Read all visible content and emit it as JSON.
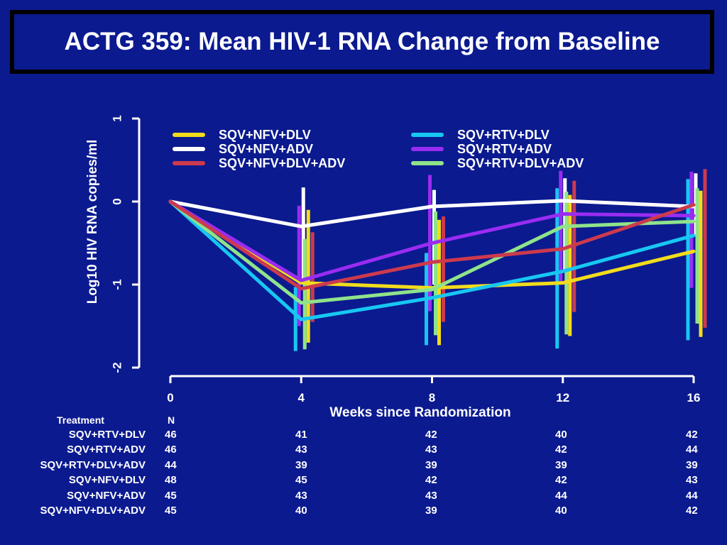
{
  "title": "ACTG 359: Mean HIV-1 RNA Change from Baseline",
  "colors": {
    "background": "#0b1a8f",
    "SQV+NFV+DLV": "#f2dc1c",
    "SQV+NFV+ADV": "#ffffff",
    "SQV+NFV+DLV+ADV": "#cc3a4e",
    "SQV+RTV+DLV": "#17c7f2",
    "SQV+RTV+ADV": "#9a2cf2",
    "SQV+RTV+DLV+ADV": "#8fe38a"
  },
  "chart_data": {
    "type": "line",
    "title": "ACTG 359: Mean HIV-1 RNA Change from Baseline",
    "xlabel": "Weeks since Randomization",
    "ylabel": "Log10 HIV RNA copies/ml",
    "x": [
      0,
      4,
      8,
      12,
      16
    ],
    "xlim": [
      0,
      16
    ],
    "ylim": [
      -2,
      1
    ],
    "x_ticks": [
      "0",
      "4",
      "8",
      "12",
      "16"
    ],
    "y_ticks": [
      "1",
      "0",
      "-1",
      "-2"
    ],
    "legend_position": "top",
    "series": [
      {
        "name": "SQV+NFV+DLV",
        "color": "#f2dc1c",
        "values": [
          0,
          -0.98,
          -1.04,
          -0.98,
          -0.6
        ],
        "err_low": [
          0,
          -1.7,
          -1.73,
          -1.62,
          -1.63
        ],
        "err_high": [
          0,
          -0.1,
          -0.22,
          0.08,
          0.13
        ]
      },
      {
        "name": "SQV+NFV+ADV",
        "color": "#ffffff",
        "values": [
          0,
          -0.3,
          -0.06,
          0.01,
          -0.06
        ],
        "err_low": [
          0,
          -1.0,
          -1.0,
          -0.85,
          -0.42
        ],
        "err_high": [
          0,
          0.17,
          0.14,
          0.28,
          0.34
        ]
      },
      {
        "name": "SQV+NFV+DLV+ADV",
        "color": "#cc3a4e",
        "values": [
          0,
          -1.05,
          -0.73,
          -0.57,
          -0.04
        ],
        "err_low": [
          0,
          -1.45,
          -1.45,
          -1.33,
          -1.52
        ],
        "err_high": [
          0,
          -0.37,
          -0.18,
          0.25,
          0.39
        ]
      },
      {
        "name": "SQV+RTV+DLV",
        "color": "#17c7f2",
        "values": [
          0,
          -1.42,
          -1.16,
          -0.84,
          -0.41
        ],
        "err_low": [
          0,
          -1.8,
          -1.73,
          -1.77,
          -1.67
        ],
        "err_high": [
          0,
          -1.03,
          -0.62,
          0.16,
          0.27
        ]
      },
      {
        "name": "SQV+RTV+ADV",
        "color": "#9a2cf2",
        "values": [
          0,
          -0.95,
          -0.5,
          -0.15,
          -0.17
        ],
        "err_low": [
          0,
          -1.5,
          -1.32,
          -0.97,
          -1.04
        ],
        "err_high": [
          0,
          -0.05,
          0.32,
          0.37,
          0.36
        ]
      },
      {
        "name": "SQV+RTV+DLV+ADV",
        "color": "#8fe38a",
        "values": [
          0,
          -1.22,
          -1.06,
          -0.3,
          -0.24
        ],
        "err_low": [
          0,
          -1.78,
          -1.61,
          -1.6,
          -1.47
        ],
        "err_high": [
          0,
          -0.45,
          -0.12,
          0.12,
          0.16
        ]
      }
    ]
  },
  "table": {
    "treatment_header": "Treatment",
    "n_header": "N",
    "rows": [
      {
        "label": "SQV+RTV+DLV",
        "n": [
          "46",
          "41",
          "42",
          "40",
          "42"
        ]
      },
      {
        "label": "SQV+RTV+ADV",
        "n": [
          "46",
          "43",
          "43",
          "42",
          "44"
        ]
      },
      {
        "label": "SQV+RTV+DLV+ADV",
        "n": [
          "44",
          "39",
          "39",
          "39",
          "39"
        ]
      },
      {
        "label": "SQV+NFV+DLV",
        "n": [
          "48",
          "45",
          "42",
          "42",
          "43"
        ]
      },
      {
        "label": "SQV+NFV+ADV",
        "n": [
          "45",
          "43",
          "43",
          "44",
          "44"
        ]
      },
      {
        "label": "SQV+NFV+DLV+ADV",
        "n": [
          "45",
          "40",
          "39",
          "40",
          "42"
        ]
      }
    ]
  }
}
